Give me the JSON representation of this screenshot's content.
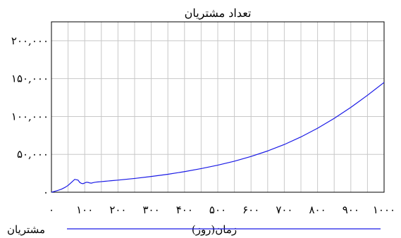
{
  "chart_data": {
    "type": "line",
    "title": "تعداد مشتریان",
    "xlabel": "زمان(روز)",
    "ylabel": "",
    "xlim": [
      0,
      1000
    ],
    "ylim": [
      0,
      225000
    ],
    "grid": true,
    "legend_position": "bottom",
    "x_ticks": [
      0,
      50,
      100,
      150,
      200,
      250,
      300,
      350,
      400,
      450,
      500,
      550,
      600,
      650,
      700,
      750,
      800,
      850,
      900,
      950,
      1000
    ],
    "x_tick_labels": [
      "۰",
      "۱۰۰",
      "۲۰۰",
      "۳۰۰",
      "۴۰۰",
      "۵۰۰",
      "۶۰۰",
      "۷۰۰",
      "۸۰۰",
      "۹۰۰",
      "۱۰۰۰"
    ],
    "x_tick_label_values": [
      0,
      100,
      200,
      300,
      400,
      500,
      600,
      700,
      800,
      900,
      1000
    ],
    "y_ticks": [
      0,
      50000,
      100000,
      150000,
      200000
    ],
    "y_tick_labels": [
      "۰",
      "۵۰,۰۰۰",
      "۱۰۰,۰۰۰",
      "۱۵۰,۰۰۰",
      "۲۰۰,۰۰۰"
    ],
    "series": [
      {
        "name": "مشتریان",
        "color": "#1a1ae6",
        "x": [
          0,
          10,
          20,
          30,
          40,
          50,
          60,
          70,
          80,
          85,
          90,
          95,
          100,
          105,
          110,
          115,
          120,
          125,
          130,
          135,
          140,
          150,
          160,
          170,
          180,
          200,
          250,
          300,
          350,
          400,
          450,
          500,
          550,
          600,
          650,
          700,
          750,
          800,
          850,
          900,
          950,
          1000
        ],
        "y": [
          0,
          1200,
          2500,
          4000,
          6200,
          9000,
          13000,
          17000,
          16000,
          13000,
          11700,
          11300,
          12300,
          13200,
          13000,
          12300,
          12000,
          12600,
          13100,
          13400,
          13600,
          14000,
          14400,
          14800,
          15200,
          16000,
          18200,
          20800,
          23700,
          27200,
          31200,
          35700,
          41000,
          47200,
          54500,
          63000,
          73000,
          84500,
          97500,
          112000,
          128000,
          145000
        ]
      }
    ]
  }
}
